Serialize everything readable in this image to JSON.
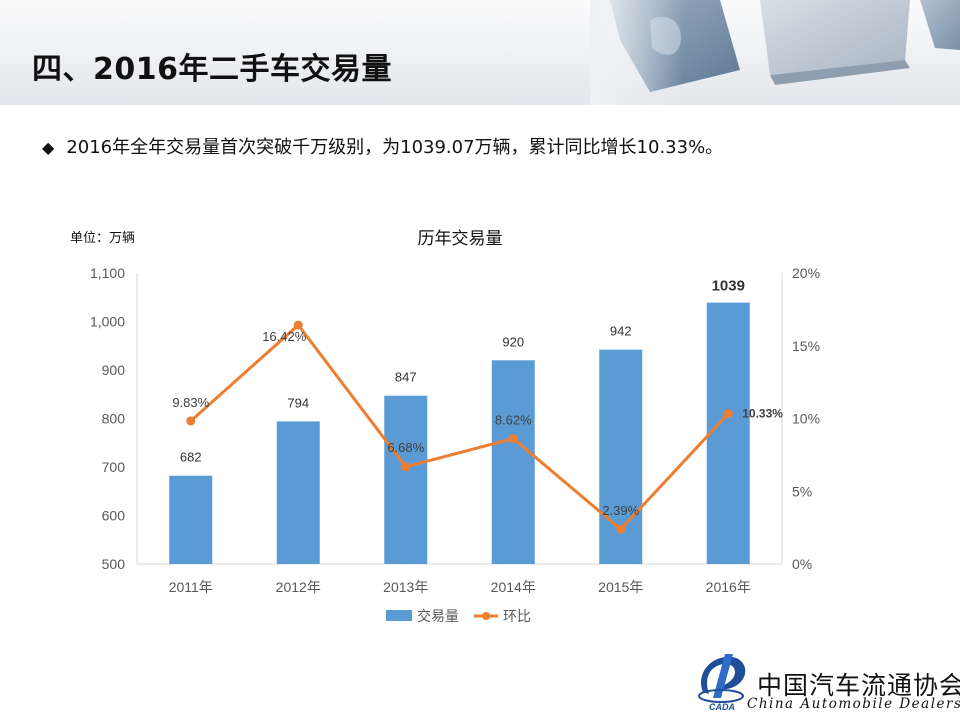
{
  "header": {
    "title": "四、2016年二手车交易量"
  },
  "summary": {
    "bullet": "2016年全年交易量首次突破千万级别，为1039.07万辆，累计同比增长10.33%。"
  },
  "colors": {
    "bar": "#5b9bd5",
    "line": "#ed7d31",
    "axis_text": "#595959",
    "grid": "#d9d9d9"
  },
  "chart_data": {
    "type": "bar+line",
    "title": "历年交易量",
    "unit_label": "单位：万辆",
    "categories": [
      "2011年",
      "2012年",
      "2013年",
      "2014年",
      "2015年",
      "2016年"
    ],
    "series": [
      {
        "name": "交易量",
        "type": "bar",
        "axis": "left",
        "values": [
          682,
          794,
          847,
          920,
          942,
          1039
        ],
        "labels": [
          "682",
          "794",
          "847",
          "920",
          "942",
          "1039"
        ]
      },
      {
        "name": "环比",
        "type": "line",
        "axis": "right",
        "values": [
          9.83,
          16.42,
          6.68,
          8.62,
          2.39,
          10.33
        ],
        "labels": [
          "9.83%",
          "16.42%",
          "6.68%",
          "8.62%",
          "2.39%",
          "10.33%"
        ]
      }
    ],
    "y_left": {
      "min": 500,
      "max": 1100,
      "ticks": [
        "500",
        "600",
        "700",
        "800",
        "900",
        "1,000",
        "1,100"
      ]
    },
    "y_right": {
      "min": 0,
      "max": 20,
      "ticks": [
        "0%",
        "5%",
        "10%",
        "15%",
        "20%"
      ]
    },
    "legend": "bottom",
    "grid": false
  },
  "logo": {
    "name_cn": "中国汽车流通协会",
    "name_en": "China Automobile Dealers",
    "mark_text": "CADA"
  }
}
